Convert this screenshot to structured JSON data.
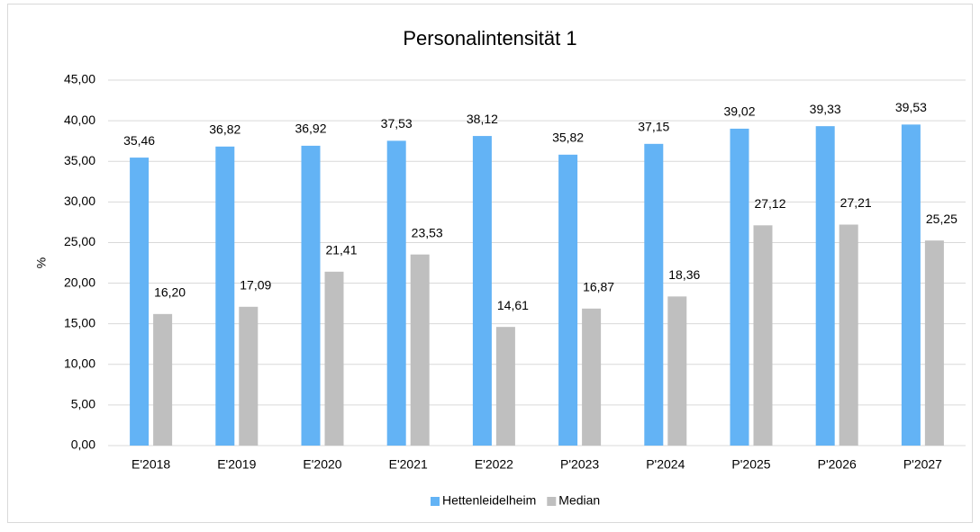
{
  "chart_data": {
    "type": "bar",
    "title": "Personalintensität 1",
    "ylabel": "%",
    "categories": [
      "E'2018",
      "E'2019",
      "E'2020",
      "E'2021",
      "E'2022",
      "P'2023",
      "P'2024",
      "P'2025",
      "P'2026",
      "P'2027"
    ],
    "series": [
      {
        "name": "Hettenleidelheim",
        "color": "#63b3f5",
        "values": [
          35.46,
          36.82,
          36.92,
          37.53,
          38.12,
          35.82,
          37.15,
          39.02,
          39.33,
          39.53
        ],
        "value_labels": [
          "35,46",
          "36,82",
          "36,92",
          "37,53",
          "38,12",
          "35,82",
          "37,15",
          "39,02",
          "39,33",
          "39,53"
        ]
      },
      {
        "name": "Median",
        "color": "#bfbfbf",
        "values": [
          16.2,
          17.09,
          21.41,
          23.53,
          14.61,
          16.87,
          18.36,
          27.12,
          27.21,
          25.25
        ],
        "value_labels": [
          "16,20",
          "17,09",
          "21,41",
          "23,53",
          "14,61",
          "16,87",
          "18,36",
          "27,12",
          "27,21",
          "25,25"
        ]
      }
    ],
    "ylim": [
      0,
      45
    ],
    "yticks": [
      {
        "value": 0,
        "label": "0,00"
      },
      {
        "value": 5,
        "label": "5,00"
      },
      {
        "value": 10,
        "label": "10,00"
      },
      {
        "value": 15,
        "label": "15,00"
      },
      {
        "value": 20,
        "label": "20,00"
      },
      {
        "value": 25,
        "label": "25,00"
      },
      {
        "value": 30,
        "label": "30,00"
      },
      {
        "value": 35,
        "label": "35,00"
      },
      {
        "value": 40,
        "label": "40,00"
      },
      {
        "value": 45,
        "label": "45,00"
      }
    ],
    "grid": true,
    "legend": "bottom"
  }
}
